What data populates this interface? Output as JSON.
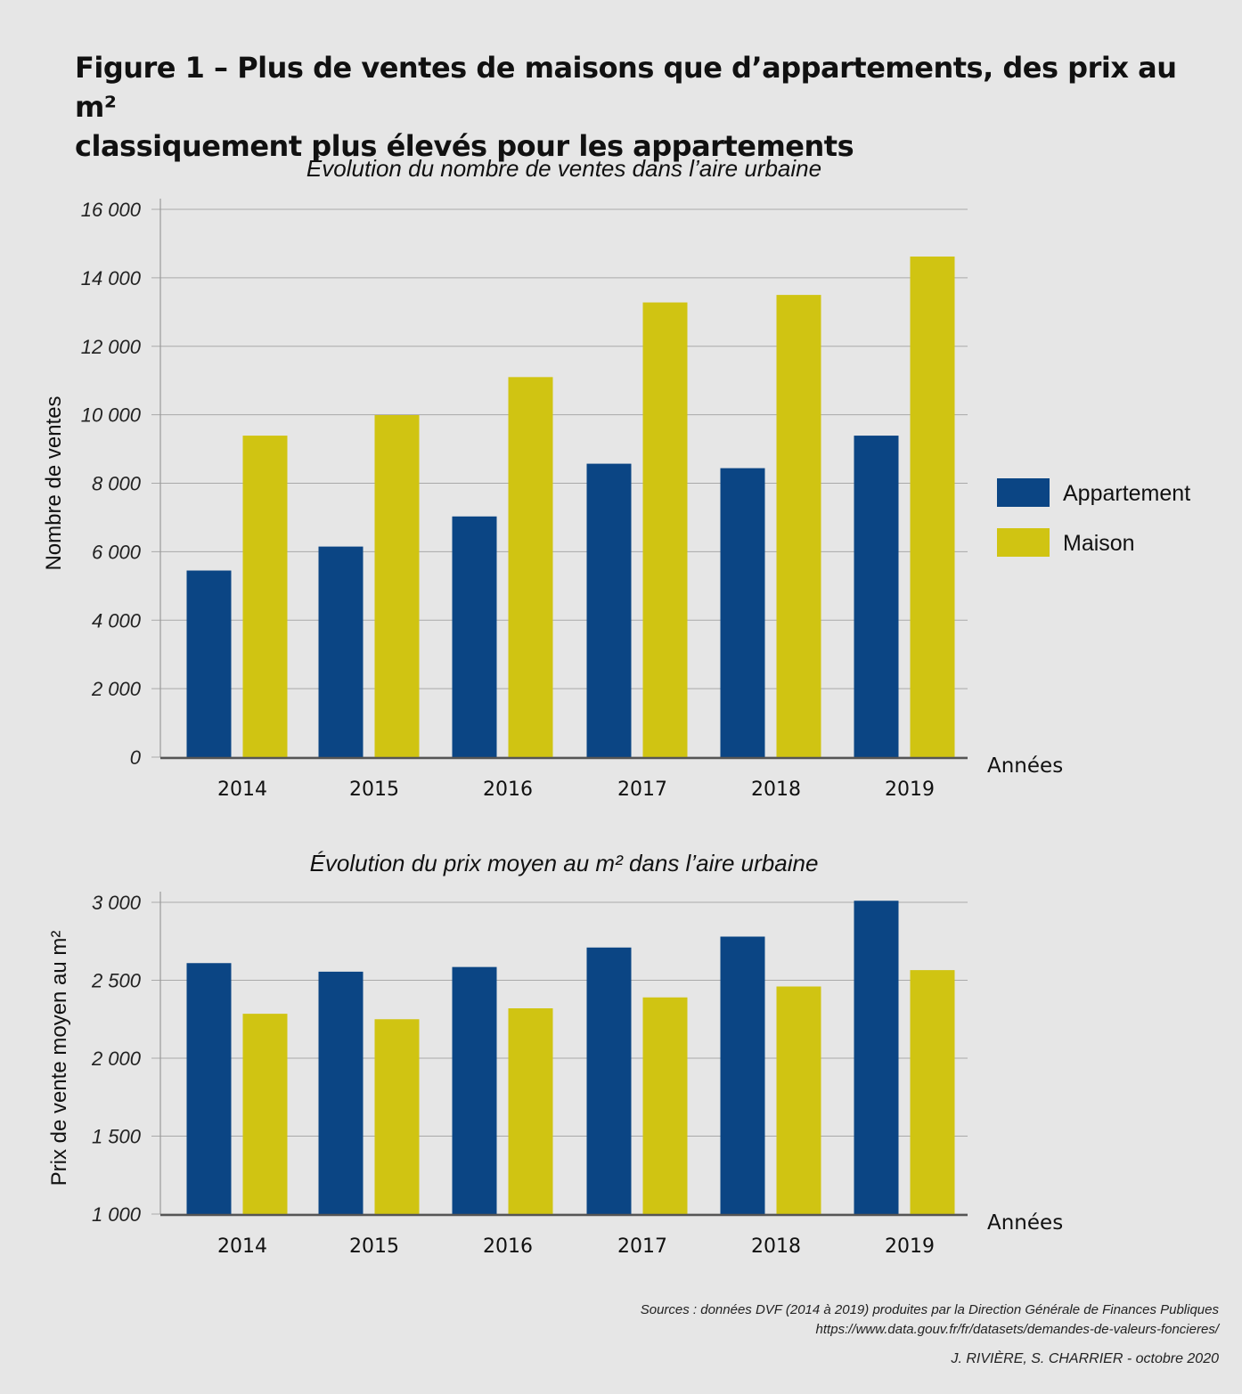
{
  "figure": {
    "title_line1": "Figure 1 – Plus de ventes de maisons que d’appartements, des prix au m²",
    "title_line2": "classiquement plus élevés pour les appartements",
    "sources_line1": "Sources : données DVF (2014 à 2019) produites par la Direction Générale de Finances Publiques",
    "sources_line2": "https://www.data.gouv.fr/fr/datasets/demandes-de-valeurs-foncieres/",
    "credit": "J. RIVIÈRE, S. CHARRIER -  octobre 2020"
  },
  "colors": {
    "appartement": "#0b4584",
    "maison": "#d0c412"
  },
  "chart_data": [
    {
      "type": "bar",
      "title": "Évolution du nombre de ventes dans l’aire urbaine",
      "xlabel": "Années",
      "ylabel": "Nombre de ventes",
      "categories": [
        "2014",
        "2015",
        "2016",
        "2017",
        "2018",
        "2019"
      ],
      "series": [
        {
          "name": "Appartement",
          "values": [
            5450,
            6150,
            7030,
            8570,
            8440,
            9390
          ]
        },
        {
          "name": "Maison",
          "values": [
            9390,
            9990,
            11100,
            13280,
            13500,
            14620
          ]
        }
      ],
      "ylim": [
        0,
        16000
      ],
      "yticks": [
        0,
        2000,
        4000,
        6000,
        8000,
        10000,
        12000,
        14000,
        16000
      ],
      "ytick_labels": [
        "0",
        "2 000",
        "4 000",
        "6 000",
        "8 000",
        "10 000",
        "12 000",
        "14 000",
        "16 000"
      ],
      "grid": true,
      "legend": "right"
    },
    {
      "type": "bar",
      "title": "Évolution du prix moyen au m² dans l’aire urbaine",
      "xlabel": "Années",
      "ylabel": "Prix de vente moyen au m²",
      "categories": [
        "2014",
        "2015",
        "2016",
        "2017",
        "2018",
        "2019"
      ],
      "series": [
        {
          "name": "Appartement",
          "values": [
            2610,
            2555,
            2585,
            2710,
            2780,
            3010
          ]
        },
        {
          "name": "Maison",
          "values": [
            2285,
            2250,
            2320,
            2390,
            2460,
            2565
          ]
        }
      ],
      "ylim": [
        1000,
        3000
      ],
      "yticks": [
        1000,
        1500,
        2000,
        2500,
        3000
      ],
      "ytick_labels": [
        "1 000",
        "1 500",
        "2 000",
        "2 500",
        "3 000"
      ],
      "grid": true,
      "legend": "none"
    }
  ]
}
